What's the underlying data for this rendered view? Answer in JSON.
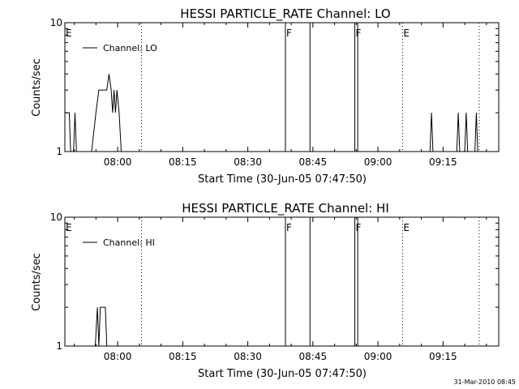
{
  "footer": {
    "timestamp": "31-Mar-2010 08:45"
  },
  "chart_data": [
    {
      "type": "line",
      "title": "HESSI PARTICLE_RATE Channel: LO",
      "xlabel": "Start Time (30-Jun-05 07:47:50)",
      "ylabel": "Counts/sec",
      "xlim": [
        "07:47:50",
        "09:27:50"
      ],
      "ylim": [
        1,
        10
      ],
      "yscale": "log",
      "x_ticks": [
        "08:00",
        "08:15",
        "08:30",
        "08:45",
        "09:00",
        "09:15"
      ],
      "y_ticks": [
        "1",
        "10"
      ],
      "legend": {
        "label": "Channel: LO",
        "position": "top-left"
      },
      "event_markers": [
        {
          "time": "07:47:50",
          "label": "E",
          "style": "none"
        },
        {
          "time": "08:05:30",
          "label": "",
          "style": "dotted"
        },
        {
          "time": "08:38:40",
          "label": "F",
          "style": "solid"
        },
        {
          "time": "08:44:20",
          "label": "",
          "style": "solid"
        },
        {
          "time": "08:54:40",
          "label": "F",
          "style": "solid"
        },
        {
          "time": "08:55:20",
          "label": "",
          "style": "solid"
        },
        {
          "time": "09:05:40",
          "label": "E",
          "style": "dotted"
        },
        {
          "time": "09:23:20",
          "label": "",
          "style": "dotted"
        }
      ],
      "series": [
        {
          "name": "Channel: LO",
          "color": "#000000",
          "segments": [
            [
              [
                "07:47:50",
                2.0
              ],
              [
                "07:48:50",
                2.0
              ],
              [
                "07:49:10",
                1.0
              ]
            ],
            [
              [
                "07:49:50",
                1.0
              ],
              [
                "07:50:10",
                2.0
              ],
              [
                "07:50:30",
                1.0
              ]
            ],
            [
              [
                "07:54:00",
                1.0
              ],
              [
                "07:55:00",
                2.0
              ],
              [
                "07:55:40",
                3.0
              ],
              [
                "07:57:30",
                3.0
              ],
              [
                "07:58:00",
                4.0
              ],
              [
                "07:58:30",
                3.0
              ],
              [
                "07:58:50",
                2.0
              ],
              [
                "07:59:10",
                3.0
              ],
              [
                "07:59:30",
                2.0
              ],
              [
                "07:59:50",
                3.0
              ],
              [
                "08:00:20",
                2.0
              ],
              [
                "08:00:50",
                1.0
              ]
            ],
            [
              [
                "09:12:00",
                1.0
              ],
              [
                "09:12:20",
                2.0
              ],
              [
                "09:12:40",
                1.0
              ]
            ],
            [
              [
                "09:18:10",
                1.0
              ],
              [
                "09:18:30",
                2.0
              ],
              [
                "09:18:50",
                1.0
              ]
            ],
            [
              [
                "09:20:00",
                1.0
              ],
              [
                "09:20:20",
                2.0
              ],
              [
                "09:20:40",
                1.0
              ]
            ],
            [
              [
                "09:22:20",
                1.0
              ],
              [
                "09:22:40",
                2.0
              ],
              [
                "09:23:00",
                1.0
              ]
            ]
          ]
        }
      ]
    },
    {
      "type": "line",
      "title": "HESSI PARTICLE_RATE Channel: HI",
      "xlabel": "Start Time (30-Jun-05 07:47:50)",
      "ylabel": "Counts/sec",
      "xlim": [
        "07:47:50",
        "09:27:50"
      ],
      "ylim": [
        1,
        10
      ],
      "yscale": "log",
      "x_ticks": [
        "08:00",
        "08:15",
        "08:30",
        "08:45",
        "09:00",
        "09:15"
      ],
      "y_ticks": [
        "1",
        "10"
      ],
      "legend": {
        "label": "Channel: HI",
        "position": "top-left"
      },
      "event_markers": [
        {
          "time": "07:47:50",
          "label": "E",
          "style": "none"
        },
        {
          "time": "08:05:30",
          "label": "",
          "style": "dotted"
        },
        {
          "time": "08:38:40",
          "label": "F",
          "style": "solid"
        },
        {
          "time": "08:44:20",
          "label": "",
          "style": "solid"
        },
        {
          "time": "08:54:40",
          "label": "F",
          "style": "solid"
        },
        {
          "time": "08:55:20",
          "label": "",
          "style": "solid"
        },
        {
          "time": "09:05:40",
          "label": "E",
          "style": "dotted"
        },
        {
          "time": "09:23:20",
          "label": "",
          "style": "dotted"
        }
      ],
      "series": [
        {
          "name": "Channel: HI",
          "color": "#000000",
          "segments": [
            [
              [
                "07:54:50",
                1.0
              ],
              [
                "07:55:20",
                2.0
              ],
              [
                "07:55:40",
                1.0
              ],
              [
                "07:56:00",
                2.0
              ],
              [
                "07:57:10",
                2.0
              ],
              [
                "07:57:30",
                1.0
              ]
            ]
          ]
        }
      ]
    }
  ]
}
